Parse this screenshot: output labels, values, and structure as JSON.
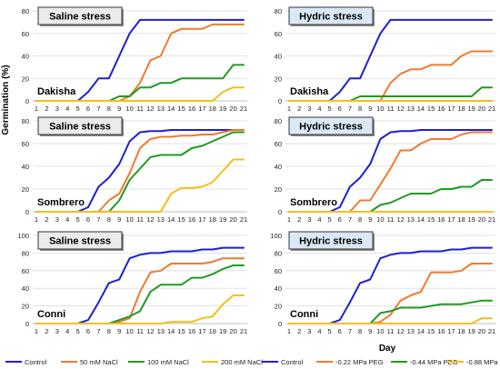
{
  "figure": {
    "ylabel": "Germination (%)",
    "xlabel": "Day"
  },
  "legend": [
    {
      "label": "Control",
      "color": "#1f1fd6"
    },
    {
      "label": "50 mM NaCl",
      "color": "#ee7b30"
    },
    {
      "label": "100 mM NaCl",
      "color": "#1f9b1f"
    },
    {
      "label": "200 mM NaCl",
      "color": "#f2c01a"
    },
    {
      "label": "Control",
      "color": "#1f1fd6"
    },
    {
      "label": "-0.22 MPa PEG",
      "color": "#ee7b30"
    },
    {
      "label": "-0.44 MPa PEG",
      "color": "#1f9b1f"
    },
    {
      "label": "-0.88 MPa PEG",
      "color": "#f2c01a"
    }
  ],
  "chart_data": [
    {
      "type": "line",
      "stress": "Saline stress",
      "variety": "Dakisha",
      "x": [
        1,
        2,
        3,
        4,
        5,
        6,
        7,
        8,
        9,
        10,
        11,
        12,
        13,
        14,
        15,
        16,
        17,
        18,
        19,
        20,
        21
      ],
      "ylim": [
        0,
        80
      ],
      "yticks": [
        0,
        20,
        40,
        60,
        80
      ],
      "series": [
        {
          "name": "Control",
          "color": "#1f1fd6",
          "values": [
            0,
            0,
            0,
            0,
            0,
            8,
            20,
            20,
            40,
            60,
            72,
            72,
            72,
            72,
            72,
            72,
            72,
            72,
            72,
            72,
            72
          ]
        },
        {
          "name": "50 mM NaCl",
          "color": "#ee7b30",
          "values": [
            0,
            0,
            0,
            0,
            0,
            0,
            0,
            0,
            0,
            4,
            16,
            36,
            40,
            60,
            64,
            64,
            64,
            68,
            68,
            68,
            68
          ]
        },
        {
          "name": "100 mM NaCl",
          "color": "#1f9b1f",
          "values": [
            0,
            0,
            0,
            0,
            0,
            0,
            0,
            0,
            4,
            4,
            12,
            12,
            16,
            16,
            20,
            20,
            20,
            20,
            20,
            32,
            32
          ]
        },
        {
          "name": "200 mM NaCl",
          "color": "#f2c01a",
          "values": [
            0,
            0,
            0,
            0,
            0,
            0,
            0,
            0,
            0,
            0,
            0,
            0,
            0,
            0,
            0,
            0,
            0,
            0,
            8,
            12,
            12
          ]
        }
      ]
    },
    {
      "type": "line",
      "stress": "Hydric stress",
      "variety": "Dakisha",
      "x": [
        1,
        2,
        3,
        4,
        5,
        6,
        7,
        8,
        9,
        10,
        11,
        12,
        13,
        14,
        15,
        16,
        17,
        18,
        19,
        20,
        21
      ],
      "ylim": [
        0,
        80
      ],
      "yticks": [
        0,
        20,
        40,
        60,
        80
      ],
      "series": [
        {
          "name": "Control",
          "color": "#1f1fd6",
          "values": [
            0,
            0,
            0,
            0,
            0,
            8,
            20,
            20,
            40,
            60,
            72,
            72,
            72,
            72,
            72,
            72,
            72,
            72,
            72,
            72,
            72
          ]
        },
        {
          "name": "-0.22 MPa PEG",
          "color": "#ee7b30",
          "values": [
            0,
            0,
            0,
            0,
            0,
            0,
            0,
            0,
            0,
            0,
            16,
            24,
            28,
            28,
            32,
            32,
            32,
            40,
            44,
            44,
            44
          ]
        },
        {
          "name": "-0.44 MPa PEG",
          "color": "#1f9b1f",
          "values": [
            0,
            0,
            0,
            0,
            0,
            0,
            0,
            4,
            4,
            4,
            4,
            4,
            4,
            4,
            4,
            4,
            4,
            4,
            4,
            12,
            12
          ]
        },
        {
          "name": "-0.88 MPa PEG",
          "color": "#f2c01a",
          "values": [
            0,
            0,
            0,
            0,
            0,
            0,
            0,
            0,
            0,
            0,
            0,
            0,
            0,
            0,
            0,
            0,
            0,
            0,
            0,
            0,
            0
          ]
        }
      ]
    },
    {
      "type": "line",
      "stress": "Saline stress",
      "variety": "Sombrero",
      "x": [
        1,
        2,
        3,
        4,
        5,
        6,
        7,
        8,
        9,
        10,
        11,
        12,
        13,
        14,
        15,
        16,
        17,
        18,
        19,
        20,
        21
      ],
      "ylim": [
        0,
        80
      ],
      "yticks": [
        0,
        20,
        40,
        60,
        80
      ],
      "series": [
        {
          "name": "Control",
          "color": "#1f1fd6",
          "values": [
            0,
            0,
            0,
            0,
            0,
            4,
            22,
            30,
            42,
            62,
            70,
            71,
            71,
            72,
            72,
            72,
            72,
            72,
            72,
            72,
            72
          ]
        },
        {
          "name": "50 mM NaCl",
          "color": "#ee7b30",
          "values": [
            0,
            0,
            0,
            0,
            0,
            0,
            0,
            10,
            16,
            34,
            56,
            64,
            66,
            66,
            67,
            67,
            68,
            68,
            70,
            72,
            72
          ]
        },
        {
          "name": "100 mM NaCl",
          "color": "#1f9b1f",
          "values": [
            0,
            0,
            0,
            0,
            0,
            0,
            0,
            0,
            10,
            28,
            38,
            48,
            50,
            50,
            50,
            56,
            58,
            62,
            66,
            70,
            70
          ]
        },
        {
          "name": "200 mM NaCl",
          "color": "#f2c01a",
          "values": [
            0,
            0,
            0,
            0,
            0,
            0,
            0,
            0,
            0,
            0,
            0,
            0,
            0,
            16,
            21,
            21,
            22,
            26,
            36,
            46,
            46
          ]
        }
      ]
    },
    {
      "type": "line",
      "stress": "Hydric stress",
      "variety": "Sombrero",
      "x": [
        1,
        2,
        3,
        4,
        5,
        6,
        7,
        8,
        9,
        10,
        11,
        12,
        13,
        14,
        15,
        16,
        17,
        18,
        19,
        20,
        21
      ],
      "ylim": [
        0,
        80
      ],
      "yticks": [
        0,
        20,
        40,
        60,
        80
      ],
      "series": [
        {
          "name": "Control",
          "color": "#1f1fd6",
          "values": [
            0,
            0,
            0,
            0,
            0,
            4,
            22,
            30,
            42,
            64,
            70,
            71,
            71,
            72,
            72,
            72,
            72,
            72,
            72,
            72,
            72
          ]
        },
        {
          "name": "-0.22 MPa PEG",
          "color": "#ee7b30",
          "values": [
            0,
            0,
            0,
            0,
            0,
            0,
            0,
            10,
            10,
            24,
            38,
            54,
            54,
            60,
            64,
            64,
            64,
            68,
            70,
            70,
            70
          ]
        },
        {
          "name": "-0.44 MPa PEG",
          "color": "#1f9b1f",
          "values": [
            0,
            0,
            0,
            0,
            0,
            0,
            0,
            0,
            0,
            6,
            8,
            12,
            16,
            16,
            16,
            20,
            20,
            22,
            22,
            28,
            28
          ]
        },
        {
          "name": "-0.88 MPa PEG",
          "color": "#f2c01a",
          "values": [
            0,
            0,
            0,
            0,
            0,
            0,
            0,
            0,
            0,
            0,
            0,
            0,
            0,
            0,
            0,
            0,
            0,
            0,
            0,
            0,
            0
          ]
        }
      ]
    },
    {
      "type": "line",
      "stress": "Saline stress",
      "variety": "Conni",
      "x": [
        1,
        2,
        3,
        4,
        5,
        6,
        7,
        8,
        9,
        10,
        11,
        12,
        13,
        14,
        15,
        16,
        17,
        18,
        19,
        20,
        21
      ],
      "ylim": [
        0,
        100
      ],
      "yticks": [
        0,
        20,
        40,
        60,
        80,
        100
      ],
      "series": [
        {
          "name": "Control",
          "color": "#1f1fd6",
          "values": [
            0,
            0,
            0,
            0,
            0,
            4,
            24,
            46,
            50,
            74,
            78,
            80,
            80,
            82,
            82,
            82,
            84,
            84,
            86,
            86,
            86
          ]
        },
        {
          "name": "50 mM NaCl",
          "color": "#ee7b30",
          "values": [
            0,
            0,
            0,
            0,
            0,
            0,
            0,
            0,
            2,
            6,
            36,
            58,
            60,
            68,
            68,
            68,
            68,
            70,
            74,
            74,
            74
          ]
        },
        {
          "name": "100 mM NaCl",
          "color": "#1f9b1f",
          "values": [
            0,
            0,
            0,
            0,
            0,
            0,
            0,
            0,
            4,
            8,
            14,
            36,
            44,
            44,
            44,
            52,
            52,
            56,
            62,
            66,
            66
          ]
        },
        {
          "name": "200 mM NaCl",
          "color": "#f2c01a",
          "values": [
            0,
            0,
            0,
            0,
            0,
            0,
            0,
            0,
            0,
            0,
            0,
            0,
            0,
            2,
            2,
            2,
            6,
            8,
            22,
            32,
            32
          ]
        }
      ]
    },
    {
      "type": "line",
      "stress": "Hydric stress",
      "variety": "Conni",
      "x": [
        1,
        2,
        3,
        4,
        5,
        6,
        7,
        8,
        9,
        10,
        11,
        12,
        13,
        14,
        15,
        16,
        17,
        18,
        19,
        20,
        21
      ],
      "ylim": [
        0,
        100
      ],
      "yticks": [
        0,
        20,
        40,
        60,
        80,
        100
      ],
      "series": [
        {
          "name": "Control",
          "color": "#1f1fd6",
          "values": [
            0,
            0,
            0,
            0,
            0,
            4,
            24,
            46,
            50,
            74,
            78,
            80,
            80,
            82,
            82,
            82,
            84,
            84,
            86,
            86,
            86
          ]
        },
        {
          "name": "-0.22 MPa PEG",
          "color": "#ee7b30",
          "values": [
            0,
            0,
            0,
            0,
            0,
            0,
            0,
            0,
            0,
            2,
            10,
            26,
            32,
            36,
            58,
            58,
            58,
            60,
            68,
            68,
            68
          ]
        },
        {
          "name": "-0.44 MPa PEG",
          "color": "#1f9b1f",
          "values": [
            0,
            0,
            0,
            0,
            0,
            0,
            0,
            0,
            0,
            12,
            14,
            18,
            18,
            18,
            20,
            22,
            22,
            22,
            24,
            26,
            26
          ]
        },
        {
          "name": "-0.88 MPa PEG",
          "color": "#f2c01a",
          "values": [
            0,
            0,
            0,
            0,
            0,
            0,
            0,
            0,
            0,
            0,
            0,
            0,
            0,
            0,
            0,
            0,
            0,
            0,
            0,
            6,
            6
          ]
        }
      ]
    }
  ]
}
